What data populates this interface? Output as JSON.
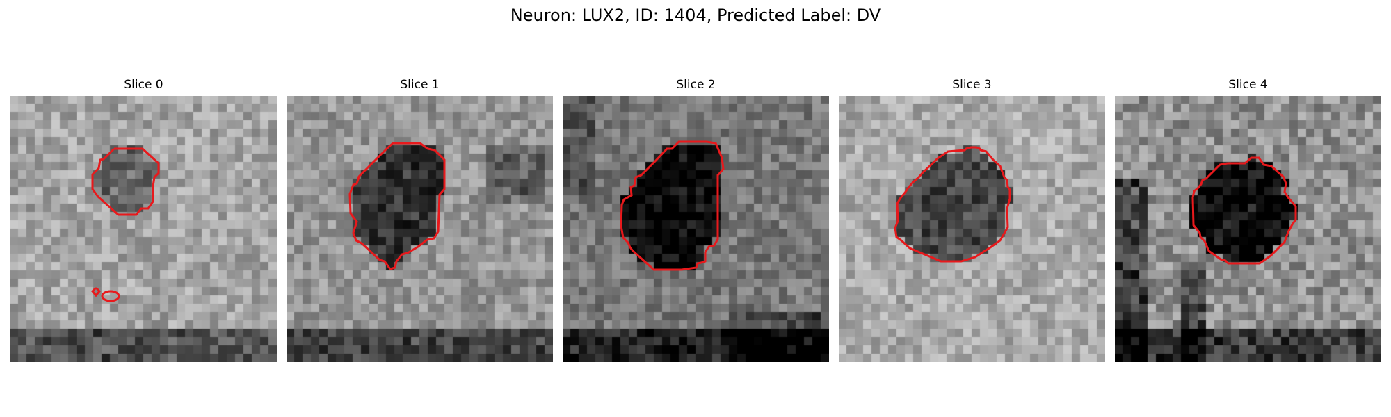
{
  "title": "Neuron: LUX2, ID: 1404, Predicted Label: DV",
  "contour_color": "#e8191c",
  "panels": [
    {
      "title": "Slice 0",
      "background": "light speckled, dark band at bottom",
      "blob": "faint"
    },
    {
      "title": "Slice 1",
      "background": "light, dark region upper right",
      "blob": "dark"
    },
    {
      "title": "Slice 2",
      "background": "mid gray, dark lower edge",
      "blob": "very dark"
    },
    {
      "title": "Slice 3",
      "background": "light speckled",
      "blob": "dark"
    },
    {
      "title": "Slice 4",
      "background": "mixed with dark stripes",
      "blob": "very dark"
    }
  ]
}
